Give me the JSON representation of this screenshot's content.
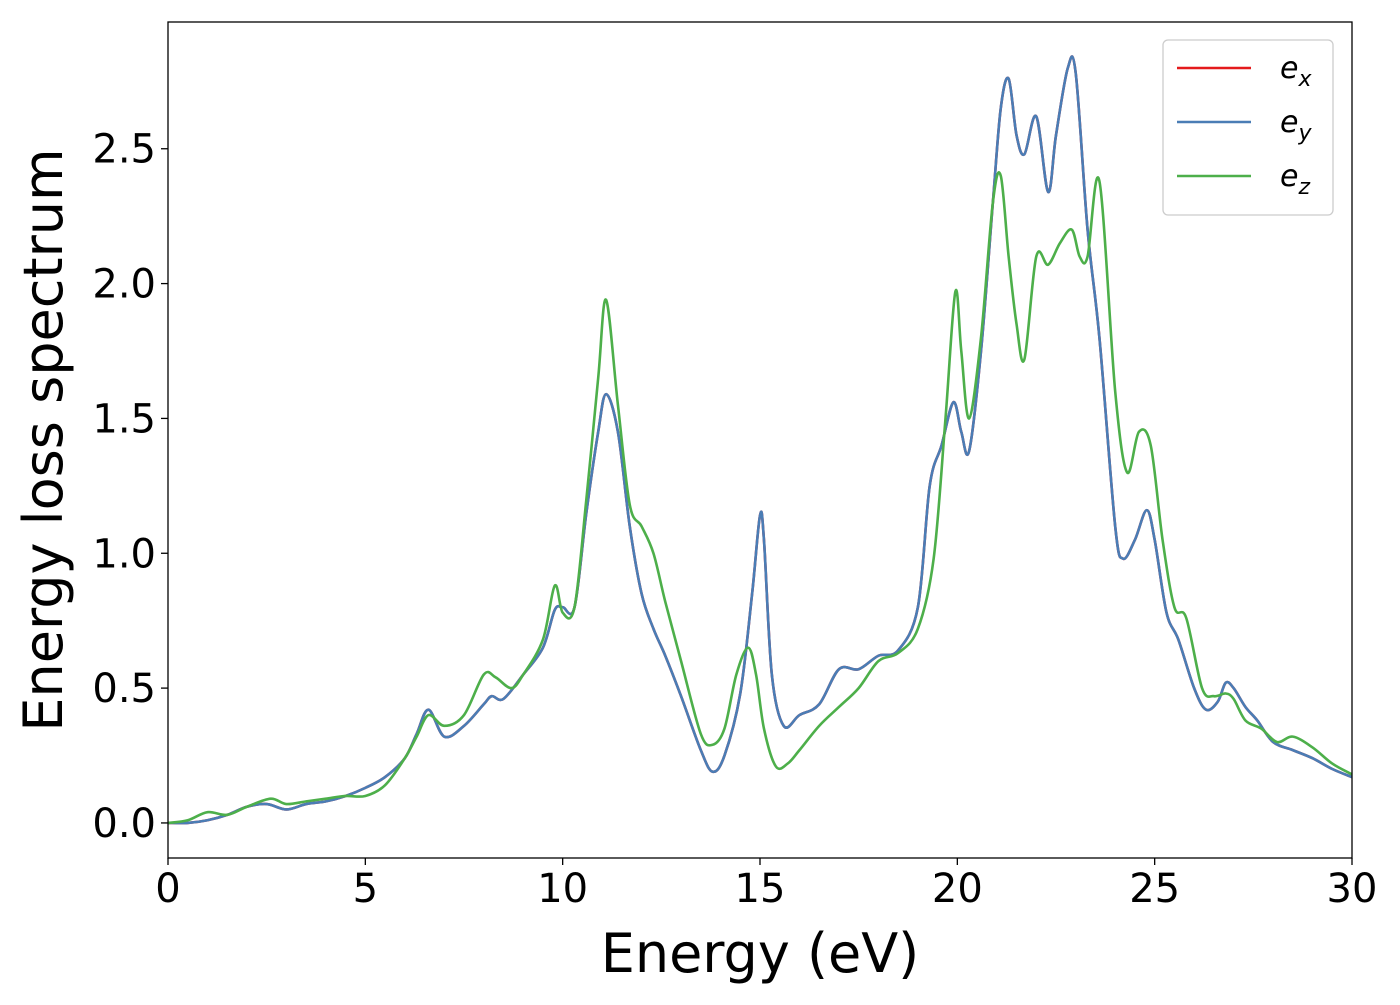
{
  "chart_data": {
    "type": "line",
    "title": "",
    "xlabel": "Energy (eV)",
    "ylabel": "Energy loss spectrum",
    "xlim": [
      0,
      30
    ],
    "ylim": [
      -0.13,
      2.97
    ],
    "xticks": [
      0,
      5,
      10,
      15,
      20,
      25,
      30
    ],
    "xtick_labels": [
      "0",
      "5",
      "10",
      "15",
      "20",
      "25",
      "30"
    ],
    "yticks": [
      0.0,
      0.5,
      1.0,
      1.5,
      2.0,
      2.5
    ],
    "ytick_labels": [
      "0.0",
      "0.5",
      "1.0",
      "1.5",
      "2.0",
      "2.5"
    ],
    "grid": false,
    "legend_position": "top-right",
    "series": [
      {
        "name": "e_x",
        "label_main": "e",
        "label_sub": "x",
        "color": "#e41a1c",
        "x": [
          0,
          0.5,
          1,
          1.5,
          2,
          2.5,
          3,
          3.5,
          4,
          4.5,
          5,
          5.5,
          6,
          6.3,
          6.6,
          7,
          7.5,
          8,
          8.2,
          8.5,
          9,
          9.5,
          9.8,
          10,
          10.3,
          10.6,
          10.9,
          11.1,
          11.4,
          11.7,
          12,
          12.3,
          12.6,
          13,
          13.5,
          13.8,
          14.1,
          14.5,
          14.8,
          15,
          15.1,
          15.3,
          15.6,
          16,
          16.5,
          17,
          17.5,
          18,
          18.5,
          19,
          19.3,
          19.6,
          19.9,
          20.1,
          20.3,
          20.6,
          20.9,
          21.1,
          21.3,
          21.5,
          21.7,
          22,
          22.3,
          22.5,
          22.8,
          23,
          23.3,
          23.6,
          24,
          24.2,
          24.5,
          24.8,
          25,
          25.3,
          25.6,
          26,
          26.3,
          26.6,
          26.8,
          27,
          27.3,
          27.6,
          28,
          28.5,
          29,
          29.5,
          30
        ],
        "y": [
          0,
          0,
          0.01,
          0.03,
          0.06,
          0.07,
          0.05,
          0.07,
          0.08,
          0.1,
          0.13,
          0.17,
          0.24,
          0.33,
          0.42,
          0.32,
          0.36,
          0.44,
          0.47,
          0.46,
          0.55,
          0.65,
          0.79,
          0.8,
          0.8,
          1.15,
          1.45,
          1.59,
          1.45,
          1.1,
          0.85,
          0.72,
          0.62,
          0.47,
          0.27,
          0.19,
          0.25,
          0.48,
          0.85,
          1.14,
          1.05,
          0.55,
          0.36,
          0.4,
          0.44,
          0.57,
          0.57,
          0.62,
          0.64,
          0.8,
          1.25,
          1.4,
          1.56,
          1.45,
          1.38,
          1.75,
          2.3,
          2.65,
          2.76,
          2.55,
          2.48,
          2.62,
          2.34,
          2.55,
          2.8,
          2.78,
          2.2,
          1.8,
          1.1,
          0.98,
          1.05,
          1.16,
          1.05,
          0.78,
          0.68,
          0.5,
          0.42,
          0.45,
          0.52,
          0.5,
          0.43,
          0.38,
          0.3,
          0.27,
          0.24,
          0.2,
          0.17
        ]
      },
      {
        "name": "e_y",
        "label_main": "e",
        "label_sub": "y",
        "color": "#4a7db5",
        "x": [
          0,
          0.5,
          1,
          1.5,
          2,
          2.5,
          3,
          3.5,
          4,
          4.5,
          5,
          5.5,
          6,
          6.3,
          6.6,
          7,
          7.5,
          8,
          8.2,
          8.5,
          9,
          9.5,
          9.8,
          10,
          10.3,
          10.6,
          10.9,
          11.1,
          11.4,
          11.7,
          12,
          12.3,
          12.6,
          13,
          13.5,
          13.8,
          14.1,
          14.5,
          14.8,
          15,
          15.1,
          15.3,
          15.6,
          16,
          16.5,
          17,
          17.5,
          18,
          18.5,
          19,
          19.3,
          19.6,
          19.9,
          20.1,
          20.3,
          20.6,
          20.9,
          21.1,
          21.3,
          21.5,
          21.7,
          22,
          22.3,
          22.5,
          22.8,
          23,
          23.3,
          23.6,
          24,
          24.2,
          24.5,
          24.8,
          25,
          25.3,
          25.6,
          26,
          26.3,
          26.6,
          26.8,
          27,
          27.3,
          27.6,
          28,
          28.5,
          29,
          29.5,
          30
        ],
        "y": [
          0,
          0,
          0.01,
          0.03,
          0.06,
          0.07,
          0.05,
          0.07,
          0.08,
          0.1,
          0.13,
          0.17,
          0.24,
          0.33,
          0.42,
          0.32,
          0.36,
          0.44,
          0.47,
          0.46,
          0.55,
          0.65,
          0.79,
          0.8,
          0.8,
          1.15,
          1.45,
          1.59,
          1.45,
          1.1,
          0.85,
          0.72,
          0.62,
          0.47,
          0.27,
          0.19,
          0.25,
          0.48,
          0.85,
          1.14,
          1.05,
          0.55,
          0.36,
          0.4,
          0.44,
          0.57,
          0.57,
          0.62,
          0.64,
          0.8,
          1.25,
          1.4,
          1.56,
          1.45,
          1.38,
          1.75,
          2.3,
          2.65,
          2.76,
          2.55,
          2.48,
          2.62,
          2.34,
          2.55,
          2.8,
          2.78,
          2.2,
          1.8,
          1.1,
          0.98,
          1.05,
          1.16,
          1.05,
          0.78,
          0.68,
          0.5,
          0.42,
          0.45,
          0.52,
          0.5,
          0.43,
          0.38,
          0.3,
          0.27,
          0.24,
          0.2,
          0.17
        ]
      },
      {
        "name": "e_z",
        "label_main": "e",
        "label_sub": "z",
        "color": "#4daf4a",
        "x": [
          0,
          0.5,
          1,
          1.5,
          2,
          2.6,
          3,
          3.5,
          4,
          4.5,
          5,
          5.5,
          6,
          6.3,
          6.6,
          7,
          7.5,
          8,
          8.3,
          8.7,
          9,
          9.5,
          9.8,
          10,
          10.3,
          10.6,
          10.9,
          11.1,
          11.4,
          11.7,
          12,
          12.3,
          12.6,
          13,
          13.5,
          13.8,
          14.1,
          14.4,
          14.7,
          14.9,
          15.1,
          15.4,
          15.7,
          16,
          16.5,
          17,
          17.5,
          18,
          18.5,
          19,
          19.4,
          19.7,
          19.95,
          20.1,
          20.3,
          20.6,
          20.9,
          21.1,
          21.3,
          21.5,
          21.7,
          22,
          22.3,
          22.6,
          22.9,
          23.1,
          23.3,
          23.6,
          24,
          24.3,
          24.6,
          24.9,
          25.2,
          25.5,
          25.8,
          26.2,
          26.5,
          26.8,
          27,
          27.3,
          27.7,
          28.1,
          28.5,
          29,
          29.5,
          30
        ],
        "y": [
          0,
          0.01,
          0.04,
          0.03,
          0.06,
          0.09,
          0.07,
          0.08,
          0.09,
          0.1,
          0.1,
          0.14,
          0.24,
          0.32,
          0.4,
          0.36,
          0.4,
          0.55,
          0.54,
          0.5,
          0.55,
          0.68,
          0.88,
          0.78,
          0.8,
          1.2,
          1.65,
          1.94,
          1.55,
          1.18,
          1.1,
          1.0,
          0.82,
          0.6,
          0.33,
          0.29,
          0.35,
          0.55,
          0.65,
          0.55,
          0.35,
          0.21,
          0.22,
          0.27,
          0.36,
          0.43,
          0.5,
          0.6,
          0.63,
          0.72,
          0.98,
          1.5,
          1.97,
          1.75,
          1.5,
          1.8,
          2.3,
          2.4,
          2.1,
          1.85,
          1.72,
          2.1,
          2.07,
          2.15,
          2.2,
          2.1,
          2.1,
          2.38,
          1.6,
          1.3,
          1.45,
          1.4,
          1.05,
          0.8,
          0.76,
          0.5,
          0.47,
          0.48,
          0.46,
          0.38,
          0.35,
          0.3,
          0.32,
          0.28,
          0.22,
          0.18
        ]
      }
    ]
  }
}
